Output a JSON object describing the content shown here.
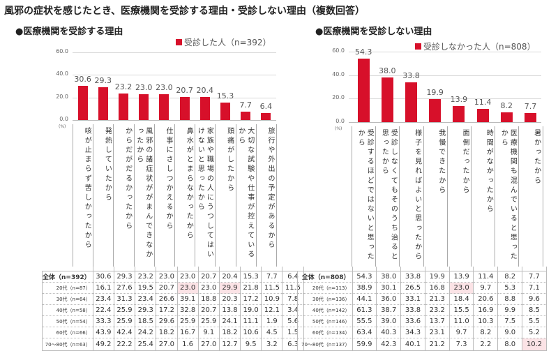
{
  "title": "風邪の症状を感じたとき、医療機関を受診する理由・受診しない理由（複数回答）",
  "colors": {
    "bar": "#d7102a",
    "highlight": "#fbe3e6"
  },
  "chart_data": [
    {
      "type": "bar",
      "title": "●医療機関を受診する理由",
      "legend": "受診した人（n=392）",
      "legend_position": "top-right",
      "unit": "(%)",
      "ylim": [
        0,
        60
      ],
      "yticks": [
        "0.0",
        "20.0",
        "40.0",
        "60.0"
      ],
      "grid": true,
      "categories": [
        "咳が止まらず苦しかったから",
        "発熱していたから",
        "からだがだるかったから",
        "風邪の諸症状ががまんできなかったから",
        "仕事にさしつかえるから",
        "鼻水がとまらなかったから",
        "家族や職場の人にうつしてはいけないと思ったから",
        "頭痛がしたから",
        "大切な試験や仕事が控えているから",
        "旅行や外出の予定があるから"
      ],
      "values": [
        30.6,
        29.3,
        23.2,
        23.0,
        23.0,
        20.7,
        20.4,
        15.3,
        7.7,
        6.4
      ],
      "value_labels": [
        "30.6",
        "29.3",
        "23.2",
        "23.0",
        "23.0",
        "20.7",
        "20.4",
        "15.3",
        "7.7",
        "6.4"
      ],
      "table": [
        {
          "label": "全体（n=392）",
          "values": [
            "30.6",
            "29.3",
            "23.2",
            "23.0",
            "23.0",
            "20.7",
            "20.4",
            "15.3",
            "7.7",
            "6.4"
          ],
          "highlight": []
        },
        {
          "label": "20代（n=87）",
          "values": [
            "16.1",
            "27.6",
            "19.5",
            "20.7",
            "23.0",
            "23.0",
            "29.9",
            "21.8",
            "11.5",
            "11.5"
          ],
          "highlight": [
            4,
            6
          ]
        },
        {
          "label": "30代（n=64）",
          "values": [
            "23.4",
            "31.3",
            "23.4",
            "26.6",
            "39.1",
            "18.8",
            "20.3",
            "17.2",
            "10.9",
            "7.8"
          ],
          "highlight": []
        },
        {
          "label": "40代（n=58）",
          "values": [
            "22.4",
            "25.9",
            "29.3",
            "17.2",
            "32.8",
            "20.7",
            "13.8",
            "19.0",
            "12.1",
            "3.4"
          ],
          "highlight": []
        },
        {
          "label": "50代（n=54）",
          "values": [
            "33.3",
            "25.9",
            "18.5",
            "29.6",
            "25.9",
            "25.9",
            "24.1",
            "11.1",
            "1.9",
            "5.6"
          ],
          "highlight": []
        },
        {
          "label": "60代（n=66）",
          "values": [
            "43.9",
            "42.4",
            "24.2",
            "18.2",
            "16.7",
            "9.1",
            "18.2",
            "10.6",
            "4.5",
            "1.5"
          ],
          "highlight": []
        },
        {
          "label": "70～80代（n=63）",
          "values": [
            "49.2",
            "22.2",
            "25.4",
            "27.0",
            "1.6",
            "27.0",
            "12.7",
            "9.5",
            "3.2",
            "6.3"
          ],
          "highlight": []
        }
      ]
    },
    {
      "type": "bar",
      "title": "●医療機関を受診しない理由",
      "legend": "受診しなかった人（n=808）",
      "legend_position": "top-right",
      "unit": "(%)",
      "ylim": [
        0,
        60
      ],
      "yticks": [
        "0.0",
        "20.0",
        "40.0",
        "60.0"
      ],
      "grid": true,
      "categories": [
        "受診するほどではないと思ったから",
        "受診しなくてもそのうち治ると思ったから",
        "様子を見ればよいと思ったから",
        "我慢できたから",
        "面倒だったから",
        "時間がなかったから",
        "医療機関も混んでいると思ったから",
        "暑かったから"
      ],
      "values": [
        54.3,
        38.0,
        33.8,
        19.9,
        13.9,
        11.4,
        8.2,
        7.7
      ],
      "value_labels": [
        "54.3",
        "38.0",
        "33.8",
        "19.9",
        "13.9",
        "11.4",
        "8.2",
        "7.7"
      ],
      "table": [
        {
          "label": "全体（n=808）",
          "values": [
            "54.3",
            "38.0",
            "33.8",
            "19.9",
            "13.9",
            "11.4",
            "8.2",
            "7.7"
          ],
          "highlight": []
        },
        {
          "label": "20代（n=113）",
          "values": [
            "38.9",
            "30.1",
            "26.5",
            "16.8",
            "23.0",
            "9.7",
            "5.3",
            "7.1"
          ],
          "highlight": [
            4
          ]
        },
        {
          "label": "30代（n=136）",
          "values": [
            "44.1",
            "36.0",
            "33.1",
            "21.3",
            "18.4",
            "20.6",
            "8.8",
            "9.6"
          ],
          "highlight": []
        },
        {
          "label": "40代（n=142）",
          "values": [
            "61.3",
            "38.7",
            "33.8",
            "23.2",
            "15.5",
            "16.9",
            "9.9",
            "8.5"
          ],
          "highlight": []
        },
        {
          "label": "50代（n=146）",
          "values": [
            "55.5",
            "39.0",
            "33.6",
            "13.7",
            "11.0",
            "10.3",
            "7.5",
            "5.5"
          ],
          "highlight": []
        },
        {
          "label": "60代（n=134）",
          "values": [
            "63.4",
            "40.3",
            "34.3",
            "23.1",
            "9.7",
            "8.2",
            "9.0",
            "5.2"
          ],
          "highlight": []
        },
        {
          "label": "70～80代（n=137）",
          "values": [
            "59.9",
            "42.3",
            "40.1",
            "21.2",
            "7.3",
            "2.2",
            "8.0",
            "10.2"
          ],
          "highlight": [
            7
          ]
        }
      ]
    }
  ]
}
